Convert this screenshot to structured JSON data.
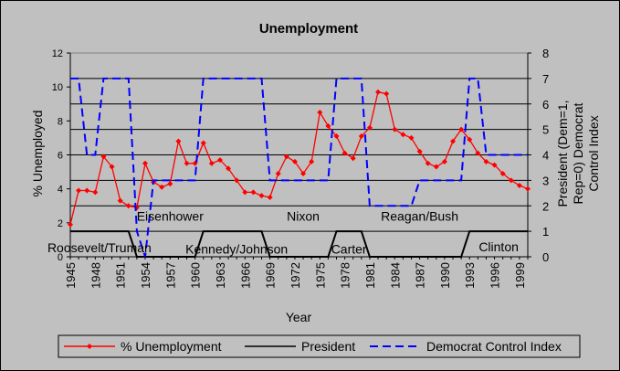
{
  "chart_data": {
    "type": "line",
    "title": "Unemployment",
    "xlabel": "Year",
    "ylabel": "% Unemployed",
    "y2label_lines": [
      "President (Dem=1,",
      "Rep=0) Democrat",
      "Control Index"
    ],
    "xlim": [
      1945,
      2000
    ],
    "ylim": [
      0,
      12
    ],
    "y2lim": [
      0,
      8
    ],
    "x_ticks": [
      "1945",
      "1948",
      "1951",
      "1954",
      "1957",
      "1960",
      "1963",
      "1966",
      "1969",
      "1972",
      "1975",
      "1978",
      "1981",
      "1984",
      "1987",
      "1990",
      "1993",
      "1996",
      "1999"
    ],
    "y_ticks": [
      "0",
      "2",
      "4",
      "6",
      "8",
      "10",
      "12"
    ],
    "y2_ticks": [
      "0",
      "1",
      "2",
      "3",
      "4",
      "5",
      "6",
      "7",
      "8"
    ],
    "grid": true,
    "plot_background": "#c0c0c0",
    "legend_position": "bottom",
    "series": [
      {
        "name": "% Unemployment",
        "axis": "left",
        "color": "#ff0000",
        "marker": "diamond",
        "style": "solid",
        "x": [
          1945,
          1946,
          1947,
          1948,
          1949,
          1950,
          1951,
          1952,
          1953,
          1954,
          1955,
          1956,
          1957,
          1958,
          1959,
          1960,
          1961,
          1962,
          1963,
          1964,
          1965,
          1966,
          1967,
          1968,
          1969,
          1970,
          1971,
          1972,
          1973,
          1974,
          1975,
          1976,
          1977,
          1978,
          1979,
          1980,
          1981,
          1982,
          1983,
          1984,
          1985,
          1986,
          1987,
          1988,
          1989,
          1990,
          1991,
          1992,
          1993,
          1994,
          1995,
          1996,
          1997,
          1998,
          1999,
          2000
        ],
        "values": [
          1.9,
          3.9,
          3.9,
          3.8,
          5.9,
          5.3,
          3.3,
          3.0,
          2.9,
          5.5,
          4.4,
          4.1,
          4.3,
          6.8,
          5.5,
          5.5,
          6.7,
          5.5,
          5.7,
          5.2,
          4.5,
          3.8,
          3.8,
          3.6,
          3.5,
          4.9,
          5.9,
          5.6,
          4.9,
          5.6,
          8.5,
          7.7,
          7.1,
          6.1,
          5.8,
          7.1,
          7.6,
          9.7,
          9.6,
          7.5,
          7.2,
          7.0,
          6.2,
          5.5,
          5.3,
          5.6,
          6.8,
          7.5,
          6.9,
          6.1,
          5.6,
          5.4,
          4.9,
          4.5,
          4.2,
          4.0
        ]
      },
      {
        "name": "President",
        "axis": "right",
        "color": "#000000",
        "style": "solid",
        "x": [
          1945,
          1952,
          1953,
          1960,
          1961,
          1968,
          1969,
          1976,
          1977,
          1980,
          1981,
          1992,
          1993,
          2000
        ],
        "values": [
          1,
          1,
          0,
          0,
          1,
          1,
          0,
          0,
          1,
          1,
          0,
          0,
          1,
          1
        ]
      },
      {
        "name": "Democrat Control Index",
        "axis": "right",
        "color": "#0000ff",
        "style": "dashed",
        "x": [
          1945,
          1946,
          1947,
          1948,
          1949,
          1952,
          1953,
          1954,
          1955,
          1960,
          1961,
          1968,
          1969,
          1976,
          1977,
          1980,
          1981,
          1986,
          1987,
          1992,
          1993,
          1994,
          1995,
          2000
        ],
        "values": [
          7,
          7,
          4,
          4,
          7,
          7,
          1,
          0,
          3,
          3,
          7,
          7,
          3,
          3,
          7,
          7,
          2,
          2,
          3,
          3,
          7,
          7,
          4,
          4
        ]
      }
    ],
    "annotations": [
      {
        "text": "Eisenhower",
        "x": 1957,
        "y2": 1.6
      },
      {
        "text": "Nixon",
        "x": 1973,
        "y2": 1.6
      },
      {
        "text": "Reagan/Bush",
        "x": 1987,
        "y2": 1.6
      },
      {
        "text": "Roosevelt/Truman",
        "x": 1948.5,
        "y2": 0.35
      },
      {
        "text": "Kennedy/Johnson",
        "x": 1965,
        "y2": 0.3
      },
      {
        "text": "Carter",
        "x": 1978.5,
        "y2": 0.3
      },
      {
        "text": "Clinton",
        "x": 1996.5,
        "y2": 0.4
      }
    ]
  }
}
